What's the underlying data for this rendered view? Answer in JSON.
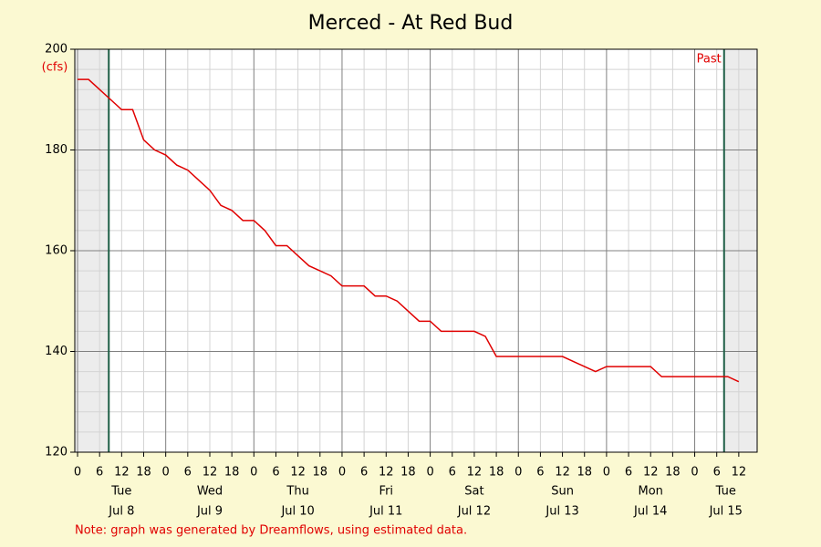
{
  "chart_data": {
    "type": "line",
    "title": "Merced - At Red Bud",
    "y_unit": "(cfs)",
    "note": "Note: graph was generated by Dreamflows, using estimated data.",
    "past_label": "Past",
    "markers": [
      8.5,
      176
    ],
    "xlim": [
      -0.75,
      185
    ],
    "ylim": [
      120,
      200
    ],
    "yticks": [
      120,
      140,
      160,
      180,
      200
    ],
    "yticks_minor": [
      124,
      128,
      132,
      136,
      144,
      148,
      152,
      156,
      164,
      168,
      172,
      176,
      184,
      188,
      192,
      196
    ],
    "xticks": [
      {
        "value": 0,
        "label": "0"
      },
      {
        "value": 6,
        "label": "6"
      },
      {
        "value": 12,
        "label": "12"
      },
      {
        "value": 18,
        "label": "18"
      },
      {
        "value": 24,
        "label": "0"
      },
      {
        "value": 30,
        "label": "6"
      },
      {
        "value": 36,
        "label": "12"
      },
      {
        "value": 42,
        "label": "18"
      },
      {
        "value": 48,
        "label": "0"
      },
      {
        "value": 54,
        "label": "6"
      },
      {
        "value": 60,
        "label": "12"
      },
      {
        "value": 66,
        "label": "18"
      },
      {
        "value": 72,
        "label": "0"
      },
      {
        "value": 78,
        "label": "6"
      },
      {
        "value": 84,
        "label": "12"
      },
      {
        "value": 90,
        "label": "18"
      },
      {
        "value": 96,
        "label": "0"
      },
      {
        "value": 102,
        "label": "6"
      },
      {
        "value": 108,
        "label": "12"
      },
      {
        "value": 114,
        "label": "18"
      },
      {
        "value": 120,
        "label": "0"
      },
      {
        "value": 126,
        "label": "6"
      },
      {
        "value": 132,
        "label": "12"
      },
      {
        "value": 138,
        "label": "18"
      },
      {
        "value": 144,
        "label": "0"
      },
      {
        "value": 150,
        "label": "6"
      },
      {
        "value": 156,
        "label": "12"
      },
      {
        "value": 162,
        "label": "18"
      },
      {
        "value": 168,
        "label": "0"
      },
      {
        "value": 174,
        "label": "6"
      },
      {
        "value": 180,
        "label": "12"
      }
    ],
    "x_days": [
      {
        "value": 12,
        "day": "Tue",
        "date": "Jul 8"
      },
      {
        "value": 36,
        "day": "Wed",
        "date": "Jul 9"
      },
      {
        "value": 60,
        "day": "Thu",
        "date": "Jul 10"
      },
      {
        "value": 84,
        "day": "Fri",
        "date": "Jul 11"
      },
      {
        "value": 108,
        "day": "Sat",
        "date": "Jul 12"
      },
      {
        "value": 132,
        "day": "Sun",
        "date": "Jul 13"
      },
      {
        "value": 156,
        "day": "Mon",
        "date": "Jul 14"
      },
      {
        "value": 176.5,
        "day": "Tue",
        "date": "Jul 15"
      }
    ],
    "grid": true,
    "series": [
      {
        "color": "#e00000",
        "x": [
          0,
          3,
          6,
          9,
          12,
          15,
          18,
          21,
          24,
          27,
          30,
          33,
          36,
          39,
          42,
          45,
          48,
          51,
          54,
          57,
          60,
          63,
          66,
          69,
          72,
          75,
          78,
          81,
          84,
          87,
          90,
          93,
          96,
          99,
          102,
          105,
          108,
          111,
          114,
          117,
          120,
          123,
          126,
          129,
          132,
          135,
          138,
          141,
          144,
          147,
          150,
          153,
          156,
          159,
          162,
          165,
          168,
          171,
          174,
          177,
          180
        ],
        "values": [
          194,
          194,
          192,
          190,
          188,
          188,
          182,
          180,
          179,
          177,
          176,
          174,
          172,
          169,
          168,
          166,
          166,
          164,
          161,
          161,
          159,
          157,
          156,
          155,
          153,
          153,
          153,
          151,
          151,
          150,
          148,
          146,
          146,
          144,
          144,
          144,
          144,
          143,
          139,
          139,
          139,
          139,
          139,
          139,
          139,
          138,
          137,
          136,
          137,
          137,
          137,
          137,
          137,
          135,
          135,
          135,
          135,
          135,
          135,
          135,
          134
        ]
      }
    ]
  }
}
